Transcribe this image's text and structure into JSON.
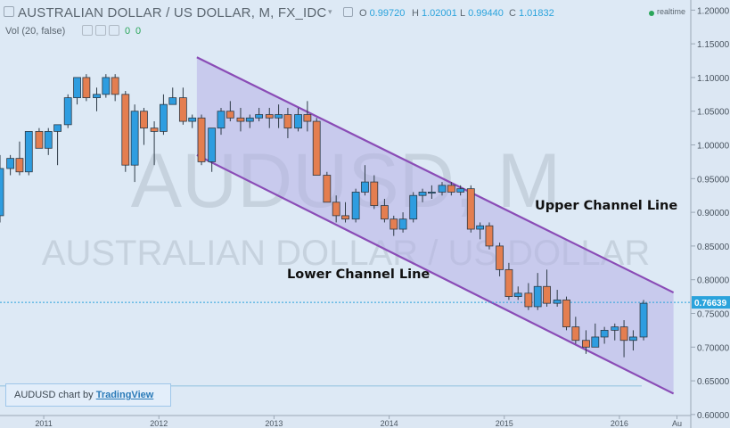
{
  "header": {
    "title": "AUSTRALIAN DOLLAR / US DOLLAR, M, FX_IDC",
    "ohlc": [
      {
        "label": "O",
        "value": "0.99720"
      },
      {
        "label": "H",
        "value": "1.02001"
      },
      {
        "label": "L",
        "value": "0.99440"
      },
      {
        "label": "C",
        "value": "1.01832"
      }
    ],
    "volume_label": "Vol (20, false)",
    "volume_values": [
      "0",
      "0"
    ],
    "realtime_label": "realtime"
  },
  "watermark": {
    "symbol": "AUDUSD, M",
    "description": "AUSTRALIAN DOLLAR / US DOLLAR"
  },
  "annotations": {
    "upper": "Upper Channel Line",
    "lower": "Lower Channel Line"
  },
  "attribution": {
    "prefix": "AUDUSD chart by ",
    "link": "TradingView"
  },
  "colors": {
    "background": "#dde9f5",
    "up": "#2e9de0",
    "down": "#e47e50",
    "channel_line": "#8a4cb6",
    "channel_fill": "#b7b1e6",
    "last_price": "#2aa3dc"
  },
  "chart_data": {
    "type": "candlestick",
    "symbol": "AUDUSD",
    "interval": "M",
    "y_axis": {
      "range": [
        0.58,
        1.215
      ],
      "ticks": [
        "1.20000",
        "1.15000",
        "1.10000",
        "1.05000",
        "1.00000",
        "0.95000",
        "0.90000",
        "0.85000",
        "0.80000",
        "0.75000",
        "0.70000",
        "0.65000",
        "0.60000"
      ]
    },
    "x_axis": {
      "range": [
        2010.62,
        2016.62
      ],
      "ticks": [
        {
          "t": 2011.0,
          "label": "2011"
        },
        {
          "t": 2012.0,
          "label": "2012"
        },
        {
          "t": 2013.0,
          "label": "2013"
        },
        {
          "t": 2014.0,
          "label": "2014"
        },
        {
          "t": 2015.0,
          "label": "2015"
        },
        {
          "t": 2016.0,
          "label": "2016"
        },
        {
          "t": 2016.5,
          "label": "Au"
        }
      ]
    },
    "last_price": "0.76639",
    "candles": [
      {
        "t": 2010.62,
        "o": 0.895,
        "h": 0.985,
        "l": 0.885,
        "c": 0.965
      },
      {
        "t": 2010.71,
        "o": 0.965,
        "h": 0.985,
        "l": 0.955,
        "c": 0.98
      },
      {
        "t": 2010.79,
        "o": 0.98,
        "h": 1.005,
        "l": 0.955,
        "c": 0.96
      },
      {
        "t": 2010.87,
        "o": 0.96,
        "h": 1.02,
        "l": 0.955,
        "c": 1.02
      },
      {
        "t": 2010.96,
        "o": 1.02,
        "h": 1.025,
        "l": 0.995,
        "c": 0.995
      },
      {
        "t": 2011.04,
        "o": 0.995,
        "h": 1.025,
        "l": 0.985,
        "c": 1.02
      },
      {
        "t": 2011.12,
        "o": 1.02,
        "h": 1.03,
        "l": 0.97,
        "c": 1.03
      },
      {
        "t": 2011.21,
        "o": 1.03,
        "h": 1.075,
        "l": 1.025,
        "c": 1.07
      },
      {
        "t": 2011.29,
        "o": 1.07,
        "h": 1.1,
        "l": 1.06,
        "c": 1.1
      },
      {
        "t": 2011.37,
        "o": 1.1,
        "h": 1.105,
        "l": 1.065,
        "c": 1.07
      },
      {
        "t": 2011.46,
        "o": 1.07,
        "h": 1.085,
        "l": 1.05,
        "c": 1.075
      },
      {
        "t": 2011.54,
        "o": 1.075,
        "h": 1.105,
        "l": 1.07,
        "c": 1.1
      },
      {
        "t": 2011.62,
        "o": 1.1,
        "h": 1.105,
        "l": 1.065,
        "c": 1.075
      },
      {
        "t": 2011.71,
        "o": 1.075,
        "h": 1.08,
        "l": 0.96,
        "c": 0.97
      },
      {
        "t": 2011.79,
        "o": 0.97,
        "h": 1.06,
        "l": 0.945,
        "c": 1.05
      },
      {
        "t": 2011.87,
        "o": 1.05,
        "h": 1.055,
        "l": 1.0,
        "c": 1.025
      },
      {
        "t": 2011.96,
        "o": 1.025,
        "h": 1.035,
        "l": 0.97,
        "c": 1.02
      },
      {
        "t": 2012.04,
        "o": 1.02,
        "h": 1.075,
        "l": 1.015,
        "c": 1.06
      },
      {
        "t": 2012.12,
        "o": 1.06,
        "h": 1.085,
        "l": 1.06,
        "c": 1.07
      },
      {
        "t": 2012.21,
        "o": 1.07,
        "h": 1.085,
        "l": 1.03,
        "c": 1.035
      },
      {
        "t": 2012.29,
        "o": 1.035,
        "h": 1.045,
        "l": 1.025,
        "c": 1.04
      },
      {
        "t": 2012.37,
        "o": 1.04,
        "h": 1.045,
        "l": 0.97,
        "c": 0.975
      },
      {
        "t": 2012.46,
        "o": 0.975,
        "h": 1.025,
        "l": 0.96,
        "c": 1.025
      },
      {
        "t": 2012.54,
        "o": 1.025,
        "h": 1.055,
        "l": 1.015,
        "c": 1.05
      },
      {
        "t": 2012.62,
        "o": 1.05,
        "h": 1.065,
        "l": 1.035,
        "c": 1.04
      },
      {
        "t": 2012.71,
        "o": 1.04,
        "h": 1.055,
        "l": 1.02,
        "c": 1.035
      },
      {
        "t": 2012.79,
        "o": 1.035,
        "h": 1.045,
        "l": 1.025,
        "c": 1.04
      },
      {
        "t": 2012.87,
        "o": 1.04,
        "h": 1.055,
        "l": 1.035,
        "c": 1.045
      },
      {
        "t": 2012.96,
        "o": 1.045,
        "h": 1.055,
        "l": 1.025,
        "c": 1.04
      },
      {
        "t": 2013.04,
        "o": 1.04,
        "h": 1.06,
        "l": 1.025,
        "c": 1.045
      },
      {
        "t": 2013.12,
        "o": 1.045,
        "h": 1.055,
        "l": 1.01,
        "c": 1.025
      },
      {
        "t": 2013.21,
        "o": 1.025,
        "h": 1.055,
        "l": 1.02,
        "c": 1.045
      },
      {
        "t": 2013.29,
        "o": 1.045,
        "h": 1.065,
        "l": 1.02,
        "c": 1.035
      },
      {
        "t": 2013.37,
        "o": 1.035,
        "h": 1.04,
        "l": 0.955,
        "c": 0.955
      },
      {
        "t": 2013.46,
        "o": 0.955,
        "h": 0.96,
        "l": 0.915,
        "c": 0.915
      },
      {
        "t": 2013.54,
        "o": 0.915,
        "h": 0.925,
        "l": 0.885,
        "c": 0.895
      },
      {
        "t": 2013.62,
        "o": 0.895,
        "h": 0.915,
        "l": 0.885,
        "c": 0.89
      },
      {
        "t": 2013.71,
        "o": 0.89,
        "h": 0.935,
        "l": 0.885,
        "c": 0.93
      },
      {
        "t": 2013.79,
        "o": 0.93,
        "h": 0.97,
        "l": 0.925,
        "c": 0.945
      },
      {
        "t": 2013.87,
        "o": 0.945,
        "h": 0.955,
        "l": 0.905,
        "c": 0.91
      },
      {
        "t": 2013.96,
        "o": 0.91,
        "h": 0.92,
        "l": 0.885,
        "c": 0.89
      },
      {
        "t": 2014.04,
        "o": 0.89,
        "h": 0.895,
        "l": 0.865,
        "c": 0.875
      },
      {
        "t": 2014.12,
        "o": 0.875,
        "h": 0.9,
        "l": 0.87,
        "c": 0.89
      },
      {
        "t": 2014.21,
        "o": 0.89,
        "h": 0.93,
        "l": 0.885,
        "c": 0.925
      },
      {
        "t": 2014.29,
        "o": 0.925,
        "h": 0.935,
        "l": 0.915,
        "c": 0.93
      },
      {
        "t": 2014.37,
        "o": 0.93,
        "h": 0.94,
        "l": 0.92,
        "c": 0.93
      },
      {
        "t": 2014.46,
        "o": 0.93,
        "h": 0.945,
        "l": 0.925,
        "c": 0.94
      },
      {
        "t": 2014.54,
        "o": 0.94,
        "h": 0.945,
        "l": 0.925,
        "c": 0.93
      },
      {
        "t": 2014.62,
        "o": 0.93,
        "h": 0.94,
        "l": 0.925,
        "c": 0.935
      },
      {
        "t": 2014.71,
        "o": 0.935,
        "h": 0.94,
        "l": 0.87,
        "c": 0.875
      },
      {
        "t": 2014.79,
        "o": 0.875,
        "h": 0.885,
        "l": 0.86,
        "c": 0.88
      },
      {
        "t": 2014.87,
        "o": 0.88,
        "h": 0.885,
        "l": 0.845,
        "c": 0.85
      },
      {
        "t": 2014.96,
        "o": 0.85,
        "h": 0.855,
        "l": 0.805,
        "c": 0.815
      },
      {
        "t": 2015.04,
        "o": 0.815,
        "h": 0.825,
        "l": 0.77,
        "c": 0.775
      },
      {
        "t": 2015.12,
        "o": 0.775,
        "h": 0.79,
        "l": 0.77,
        "c": 0.78
      },
      {
        "t": 2015.21,
        "o": 0.78,
        "h": 0.795,
        "l": 0.755,
        "c": 0.76
      },
      {
        "t": 2015.29,
        "o": 0.76,
        "h": 0.81,
        "l": 0.755,
        "c": 0.79
      },
      {
        "t": 2015.37,
        "o": 0.79,
        "h": 0.815,
        "l": 0.76,
        "c": 0.765
      },
      {
        "t": 2015.46,
        "o": 0.765,
        "h": 0.785,
        "l": 0.76,
        "c": 0.77
      },
      {
        "t": 2015.54,
        "o": 0.77,
        "h": 0.775,
        "l": 0.725,
        "c": 0.73
      },
      {
        "t": 2015.62,
        "o": 0.73,
        "h": 0.745,
        "l": 0.705,
        "c": 0.71
      },
      {
        "t": 2015.71,
        "o": 0.71,
        "h": 0.725,
        "l": 0.69,
        "c": 0.7
      },
      {
        "t": 2015.79,
        "o": 0.7,
        "h": 0.735,
        "l": 0.7,
        "c": 0.715
      },
      {
        "t": 2015.87,
        "o": 0.715,
        "h": 0.73,
        "l": 0.705,
        "c": 0.725
      },
      {
        "t": 2015.96,
        "o": 0.725,
        "h": 0.735,
        "l": 0.71,
        "c": 0.73
      },
      {
        "t": 2016.04,
        "o": 0.73,
        "h": 0.74,
        "l": 0.685,
        "c": 0.71
      },
      {
        "t": 2016.12,
        "o": 0.71,
        "h": 0.725,
        "l": 0.695,
        "c": 0.715
      },
      {
        "t": 2016.21,
        "o": 0.715,
        "h": 0.77,
        "l": 0.71,
        "c": 0.765
      }
    ],
    "channel": {
      "upper": [
        {
          "t": 2012.33,
          "p": 1.13
        },
        {
          "t": 2016.47,
          "p": 0.781
        }
      ],
      "lower": [
        {
          "t": 2012.33,
          "p": 0.985
        },
        {
          "t": 2016.47,
          "p": 0.631
        }
      ]
    }
  }
}
